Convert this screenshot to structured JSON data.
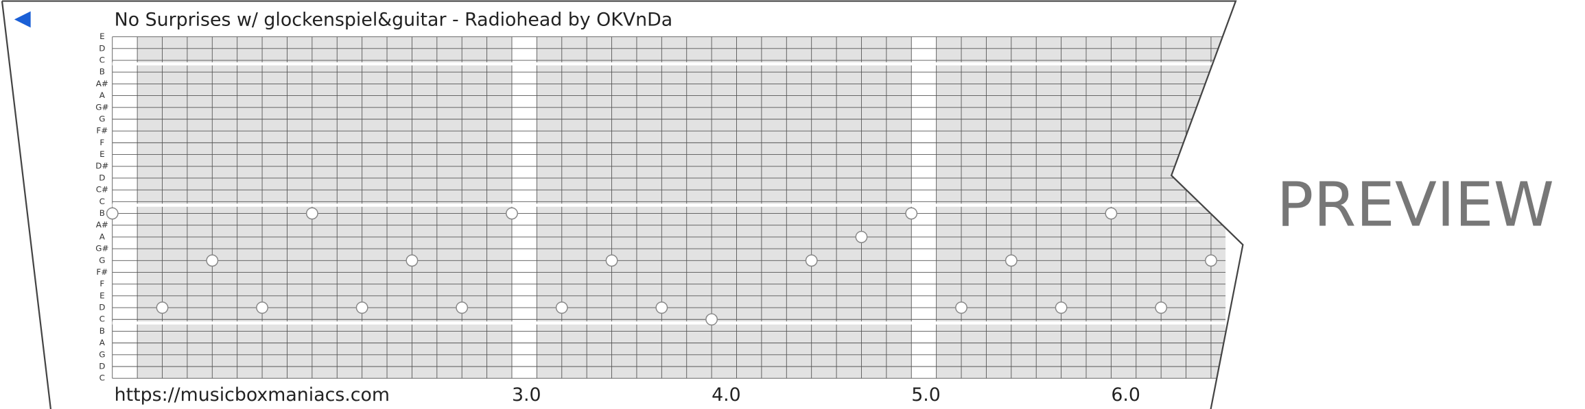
{
  "header": {
    "title": "No Surprises w/ glockenspiel&guitar - Radiohead by OKVnDa"
  },
  "rows": [
    "E",
    "D",
    "C",
    "B",
    "A#",
    "A",
    "G#",
    "G",
    "F#",
    "F",
    "E",
    "D#",
    "D",
    "C#",
    "C",
    "B",
    "A#",
    "A",
    "G#",
    "G",
    "F#",
    "F",
    "E",
    "D",
    "C",
    "B",
    "A",
    "G",
    "D",
    "C"
  ],
  "time_ticks": [
    {
      "value": 3,
      "label": "3.0"
    },
    {
      "value": 4,
      "label": "4.0"
    },
    {
      "value": 5,
      "label": "5.0"
    },
    {
      "value": 6,
      "label": "6.0"
    }
  ],
  "notes": [
    {
      "row": 15,
      "time": 1.0
    },
    {
      "row": 23,
      "time": 1.25
    },
    {
      "row": 19,
      "time": 1.5
    },
    {
      "row": 23,
      "time": 1.75
    },
    {
      "row": 15,
      "time": 2.0
    },
    {
      "row": 23,
      "time": 2.25
    },
    {
      "row": 19,
      "time": 2.5
    },
    {
      "row": 23,
      "time": 2.75
    },
    {
      "row": 15,
      "time": 3.0
    },
    {
      "row": 23,
      "time": 3.25
    },
    {
      "row": 19,
      "time": 3.5
    },
    {
      "row": 23,
      "time": 3.75
    },
    {
      "row": 24,
      "time": 4.0
    },
    {
      "row": 19,
      "time": 4.5
    },
    {
      "row": 17,
      "time": 4.75
    },
    {
      "row": 15,
      "time": 5.0
    },
    {
      "row": 23,
      "time": 5.25
    },
    {
      "row": 19,
      "time": 5.5
    },
    {
      "row": 23,
      "time": 5.75
    },
    {
      "row": 15,
      "time": 6.0
    },
    {
      "row": 23,
      "time": 6.25
    },
    {
      "row": 19,
      "time": 6.5
    }
  ],
  "footer": {
    "url": "https://musicboxmaniacs.com"
  },
  "watermark": "PREVIEW"
}
